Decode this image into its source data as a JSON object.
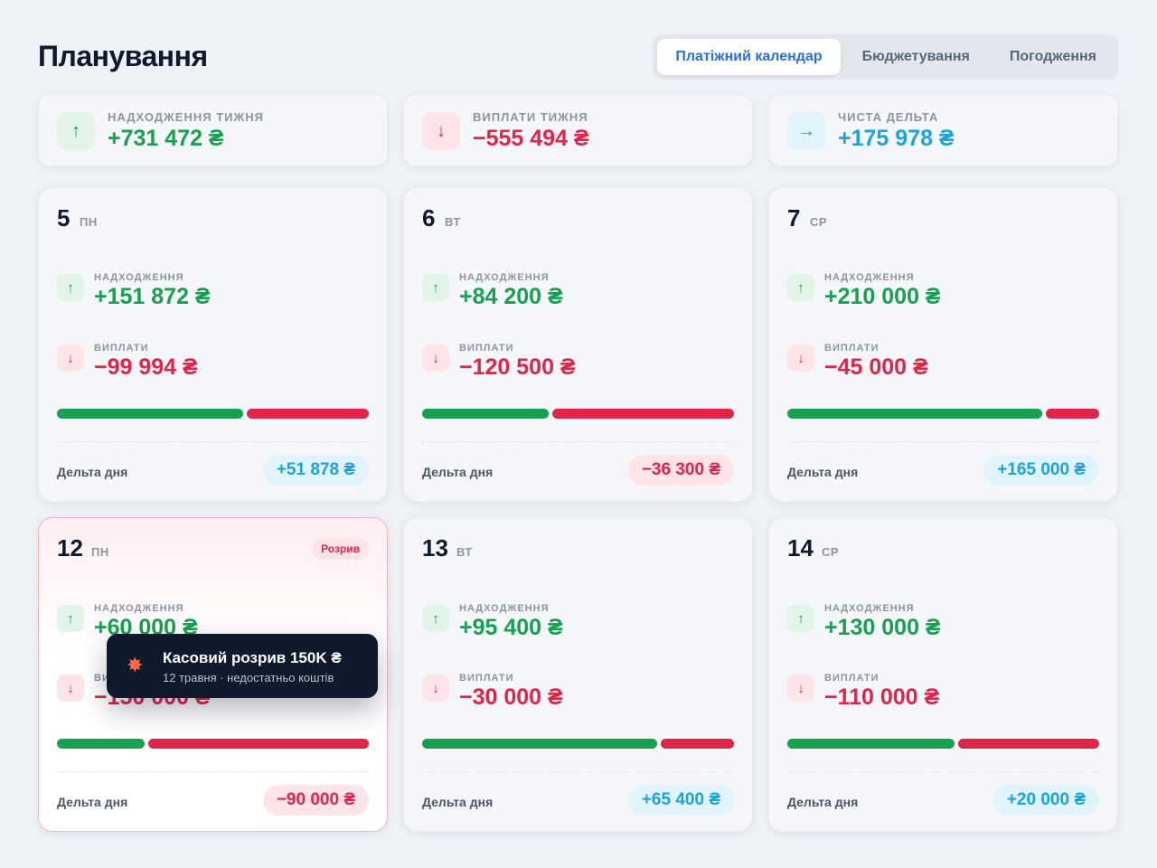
{
  "header": {
    "title": "Планування",
    "tabs": [
      {
        "label": "Платіжний календар",
        "active": true
      },
      {
        "label": "Бюджетування",
        "active": false
      },
      {
        "label": "Погодження",
        "active": false
      }
    ]
  },
  "summary": [
    {
      "label": "НАДХОДЖЕННЯ ТИЖНЯ",
      "value": "+731 472 ₴",
      "icon": "arrow-up-icon",
      "glyph": "↑",
      "tone": "green"
    },
    {
      "label": "ВИПЛАТИ ТИЖНЯ",
      "value": "−555 494 ₴",
      "icon": "arrow-down-icon",
      "glyph": "↓",
      "tone": "red"
    },
    {
      "label": "ЧИСТА ДЕЛЬТА",
      "value": "+175 978 ₴",
      "icon": "arrow-right-icon",
      "glyph": "→",
      "tone": "blue"
    }
  ],
  "labels": {
    "income": "НАДХОДЖЕННЯ",
    "payments": "ВИПЛАТИ",
    "delta": "Дельта дня",
    "income_glyph": "↑",
    "payments_glyph": "↓"
  },
  "days": [
    {
      "num": "5",
      "weekday": "ПН",
      "income": "+151 872 ₴",
      "payments": "−99 994 ₴",
      "income_value": 151872,
      "payments_value": 99994,
      "delta": "+51 878 ₴",
      "delta_tone": "blue",
      "badge": ""
    },
    {
      "num": "6",
      "weekday": "ВТ",
      "income": "+84 200 ₴",
      "payments": "−120 500 ₴",
      "income_value": 84200,
      "payments_value": 120500,
      "delta": "−36 300 ₴",
      "delta_tone": "red",
      "badge": ""
    },
    {
      "num": "7",
      "weekday": "СР",
      "income": "+210 000 ₴",
      "payments": "−45 000 ₴",
      "income_value": 210000,
      "payments_value": 45000,
      "delta": "+165 000 ₴",
      "delta_tone": "blue",
      "badge": ""
    },
    {
      "num": "12",
      "weekday": "ПН",
      "income": "+60 000 ₴",
      "payments": "−150 000 ₴",
      "income_value": 60000,
      "payments_value": 150000,
      "delta": "−90 000 ₴",
      "delta_tone": "red",
      "badge": "Розрив"
    },
    {
      "num": "13",
      "weekday": "ВТ",
      "income": "+95 400 ₴",
      "payments": "−30 000 ₴",
      "income_value": 95400,
      "payments_value": 30000,
      "delta": "+65 400 ₴",
      "delta_tone": "blue",
      "badge": ""
    },
    {
      "num": "14",
      "weekday": "СР",
      "income": "+130 000 ₴",
      "payments": "−110 000 ₴",
      "income_value": 130000,
      "payments_value": 110000,
      "delta": "+20 000 ₴",
      "delta_tone": "blue",
      "badge": ""
    }
  ],
  "toast": {
    "icon": "explosion-icon",
    "glyph": "✸",
    "title": "Касовий розрив 150K ₴",
    "subtitle": "12 травня · недостатньо коштів"
  },
  "colors": {
    "green": "#17a04f",
    "red": "#e0244a",
    "blue": "#1ba3dc",
    "accent": "#2a6fe0"
  }
}
